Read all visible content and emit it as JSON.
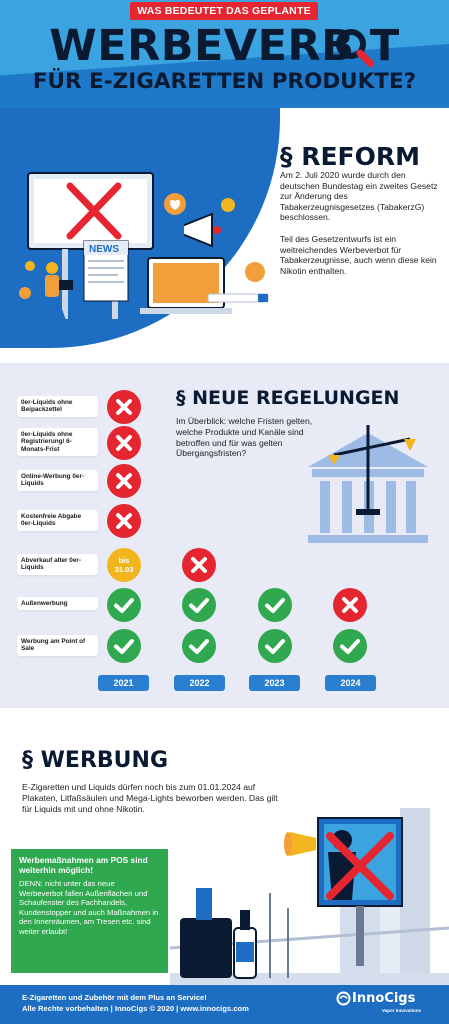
{
  "header": {
    "eyebrow": "WAS BEDEUTET DAS GEPLANTE",
    "title": "WERBEVERB T",
    "subtitle": "FÜR E-ZIGARETTEN PRODUKTE?"
  },
  "reform": {
    "heading": "§ REFORM",
    "paragraph1": "Am 2. Juli 2020 wurde durch den deutschen Bundestag ein zweites Gesetz zur Änderung des Tabakerzeugnisgesetzes (TabakerzG) beschlossen.",
    "paragraph2": "Teil des Gesetzentwurfs ist ein weitreichendes Werbeverbot für Tabakerzeugnisse, auch wenn diese kein Nikotin enthalten.",
    "news_label": "NEWS"
  },
  "rules": {
    "heading": "§ NEUE REGELUNGEN",
    "intro": "Im Überblick: welche Fristen gelten, welche Produkte und Kanäle sind betroffen und für was gelten Übergangsfristen?",
    "years": [
      "2021",
      "2022",
      "2023",
      "2024"
    ],
    "rows": [
      {
        "label": "0er-Liquids ohne Beipackzettel",
        "marks": [
          "no",
          "",
          "",
          ""
        ]
      },
      {
        "label": "0er-Liquids ohne Registrierung/ 6-Monats-Frist",
        "marks": [
          "no",
          "",
          "",
          ""
        ]
      },
      {
        "label": "Online-Werbung 0er-Liquids",
        "marks": [
          "no",
          "",
          "",
          ""
        ]
      },
      {
        "label": "Kostenfreie Abgabe 0er-Liquids",
        "marks": [
          "no",
          "",
          "",
          ""
        ]
      },
      {
        "label": "Abverkauf alter 0er-Liquids",
        "marks": [
          "bis",
          "no",
          "",
          ""
        ]
      },
      {
        "label": "Außenwerbung",
        "marks": [
          "yes",
          "yes",
          "yes",
          "no"
        ]
      },
      {
        "label": "Werbung am Point of Sale",
        "marks": [
          "yes",
          "yes",
          "yes",
          "yes"
        ]
      }
    ],
    "bis_label_1": "bis",
    "bis_label_2": "31.03",
    "colors": {
      "no": "#e5252f",
      "yes": "#2fa84f",
      "bis": "#f2b51e",
      "year": "#2a7fd0"
    }
  },
  "ads": {
    "heading": "§ WERBUNG",
    "text": "E-Zigaretten und Liquids dürfen noch bis zum 01.01.2024 auf Plakaten, Litfaßsäulen und Mega-Lights beworben werden. Das gilt für Liquids mit und ohne Nikotin.",
    "pos_title": "Werbemaßnahmen am POS sind weiterhin möglich!",
    "pos_text": "DENN: nicht unter das neue Werbeverbot fallen Außenflächen und Schaufenster des Fachhandels, Kundenstopper und auch Maßnahmen in den Innenräumen, am Tresen etc. sind weiter erlaubt!"
  },
  "footer": {
    "line1": "E-Zigaretten und Zubehör mit dem Plus an Service!",
    "line2": "Alle Rechte vorbehalten | InnoCigs © 2020 | www.innocigs.com",
    "logo_name": "InnoCigs",
    "logo_tagline": "Vapor Innovations"
  }
}
